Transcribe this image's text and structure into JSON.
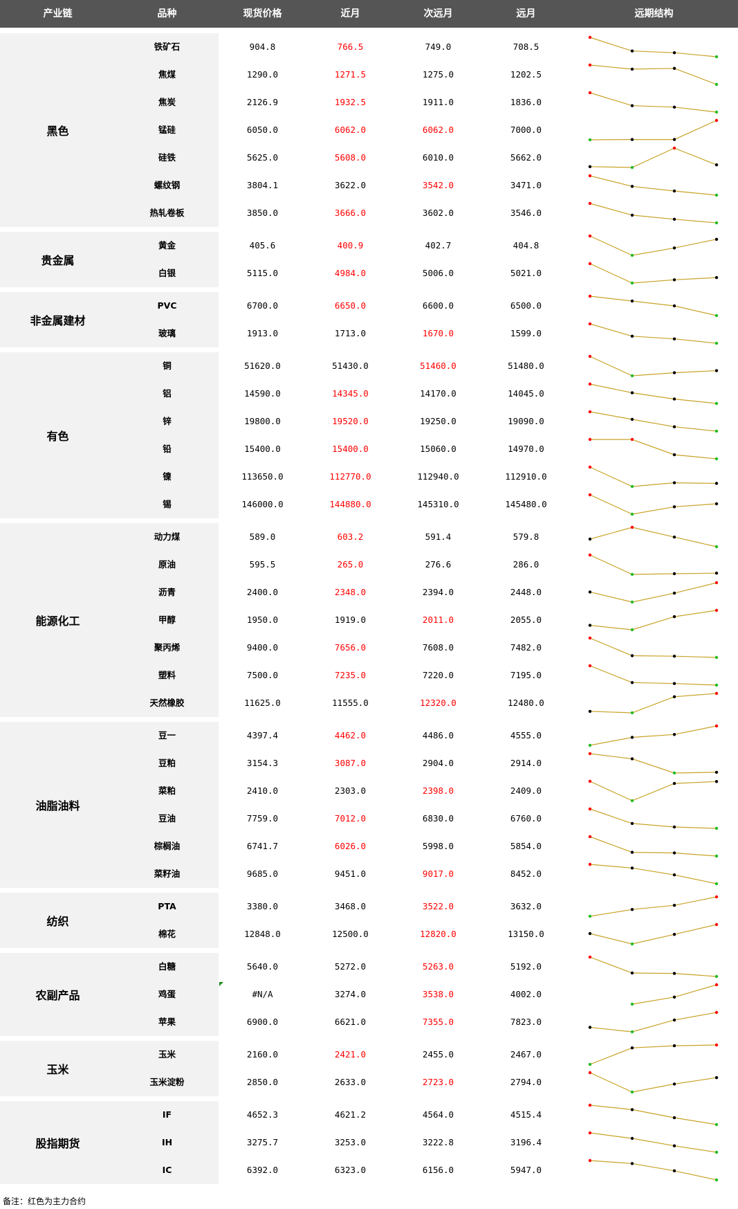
{
  "header": [
    "产业链",
    "品种",
    "现货价格",
    "近月",
    "次远月",
    "远月",
    "远期结构"
  ],
  "footnote": "备注：红色为主力合约",
  "colors": {
    "header_bg": "#555555",
    "main_contract": "#ff0000",
    "line": "#c9a227",
    "point_max": "#ff0000",
    "point_min": "#22bb22",
    "point_mid": "#000000"
  },
  "groups": [
    {
      "name": "黑色",
      "rows": [
        {
          "name": "铁矿石",
          "spot": "904.8",
          "near": "766.5",
          "next": "749.0",
          "far": "708.5",
          "main": "near"
        },
        {
          "name": "焦煤",
          "spot": "1290.0",
          "near": "1271.5",
          "next": "1275.0",
          "far": "1202.5",
          "main": "near"
        },
        {
          "name": "焦炭",
          "spot": "2126.9",
          "near": "1932.5",
          "next": "1911.0",
          "far": "1836.0",
          "main": "near"
        },
        {
          "name": "锰硅",
          "spot": "6050.0",
          "near": "6062.0",
          "next": "6062.0",
          "far": "7000.0",
          "main": "near,next"
        },
        {
          "name": "硅铁",
          "spot": "5625.0",
          "near": "5608.0",
          "next": "6010.0",
          "far": "5662.0",
          "main": "near"
        },
        {
          "name": "螺纹钢",
          "spot": "3804.1",
          "near": "3622.0",
          "next": "3542.0",
          "far": "3471.0",
          "main": "next"
        },
        {
          "name": "热轧卷板",
          "spot": "3850.0",
          "near": "3666.0",
          "next": "3602.0",
          "far": "3546.0",
          "main": "near"
        }
      ]
    },
    {
      "name": "贵金属",
      "rows": [
        {
          "name": "黄金",
          "spot": "405.6",
          "near": "400.9",
          "next": "402.7",
          "far": "404.8",
          "main": "near"
        },
        {
          "name": "白银",
          "spot": "5115.0",
          "near": "4984.0",
          "next": "5006.0",
          "far": "5021.0",
          "main": "near"
        }
      ]
    },
    {
      "name": "非金属建材",
      "rows": [
        {
          "name": "PVC",
          "spot": "6700.0",
          "near": "6650.0",
          "next": "6600.0",
          "far": "6500.0",
          "main": "near"
        },
        {
          "name": "玻璃",
          "spot": "1913.0",
          "near": "1713.0",
          "next": "1670.0",
          "far": "1599.0",
          "main": "next"
        }
      ]
    },
    {
      "name": "有色",
      "rows": [
        {
          "name": "铜",
          "spot": "51620.0",
          "near": "51430.0",
          "next": "51460.0",
          "far": "51480.0",
          "main": "next"
        },
        {
          "name": "铝",
          "spot": "14590.0",
          "near": "14345.0",
          "next": "14170.0",
          "far": "14045.0",
          "main": "near"
        },
        {
          "name": "锌",
          "spot": "19800.0",
          "near": "19520.0",
          "next": "19250.0",
          "far": "19090.0",
          "main": "near"
        },
        {
          "name": "铅",
          "spot": "15400.0",
          "near": "15400.0",
          "next": "15060.0",
          "far": "14970.0",
          "main": "near"
        },
        {
          "name": "镍",
          "spot": "113650.0",
          "near": "112770.0",
          "next": "112940.0",
          "far": "112910.0",
          "main": "near"
        },
        {
          "name": "锡",
          "spot": "146000.0",
          "near": "144880.0",
          "next": "145310.0",
          "far": "145480.0",
          "main": "near"
        }
      ]
    },
    {
      "name": "能源化工",
      "rows": [
        {
          "name": "动力煤",
          "spot": "589.0",
          "near": "603.2",
          "next": "591.4",
          "far": "579.8",
          "main": "near"
        },
        {
          "name": "原油",
          "spot": "595.5",
          "near": "265.0",
          "next": "276.6",
          "far": "286.0",
          "main": "near"
        },
        {
          "name": "沥青",
          "spot": "2400.0",
          "near": "2348.0",
          "next": "2394.0",
          "far": "2448.0",
          "main": "near"
        },
        {
          "name": "甲醇",
          "spot": "1950.0",
          "near": "1919.0",
          "next": "2011.0",
          "far": "2055.0",
          "main": "next"
        },
        {
          "name": "聚丙烯",
          "spot": "9400.0",
          "near": "7656.0",
          "next": "7608.0",
          "far": "7482.0",
          "main": "near"
        },
        {
          "name": "塑料",
          "spot": "7500.0",
          "near": "7235.0",
          "next": "7220.0",
          "far": "7195.0",
          "main": "near"
        },
        {
          "name": "天然橡胶",
          "spot": "11625.0",
          "near": "11555.0",
          "next": "12320.0",
          "far": "12480.0",
          "main": "next"
        }
      ]
    },
    {
      "name": "油脂油料",
      "rows": [
        {
          "name": "豆一",
          "spot": "4397.4",
          "near": "4462.0",
          "next": "4486.0",
          "far": "4555.0",
          "main": "near"
        },
        {
          "name": "豆粕",
          "spot": "3154.3",
          "near": "3087.0",
          "next": "2904.0",
          "far": "2914.0",
          "main": "near"
        },
        {
          "name": "菜粕",
          "spot": "2410.0",
          "near": "2303.0",
          "next": "2398.0",
          "far": "2409.0",
          "main": "next"
        },
        {
          "name": "豆油",
          "spot": "7759.0",
          "near": "7012.0",
          "next": "6830.0",
          "far": "6760.0",
          "main": "near"
        },
        {
          "name": "棕榈油",
          "spot": "6741.7",
          "near": "6026.0",
          "next": "5998.0",
          "far": "5854.0",
          "main": "near"
        },
        {
          "name": "菜籽油",
          "spot": "9685.0",
          "near": "9451.0",
          "next": "9017.0",
          "far": "8452.0",
          "main": "next"
        }
      ]
    },
    {
      "name": "纺织",
      "rows": [
        {
          "name": "PTA",
          "spot": "3380.0",
          "near": "3468.0",
          "next": "3522.0",
          "far": "3632.0",
          "main": "next"
        },
        {
          "name": "棉花",
          "spot": "12848.0",
          "near": "12500.0",
          "next": "12820.0",
          "far": "13150.0",
          "main": "next"
        }
      ]
    },
    {
      "name": "农副产品",
      "rows": [
        {
          "name": "白糖",
          "spot": "5640.0",
          "near": "5272.0",
          "next": "5263.0",
          "far": "5192.0",
          "main": "next"
        },
        {
          "name": "鸡蛋",
          "spot": "#N/A",
          "near": "3274.0",
          "next": "3538.0",
          "far": "4002.0",
          "main": "next"
        },
        {
          "name": "苹果",
          "spot": "6900.0",
          "near": "6621.0",
          "next": "7355.0",
          "far": "7823.0",
          "main": "next"
        }
      ]
    },
    {
      "name": "玉米",
      "rows": [
        {
          "name": "玉米",
          "spot": "2160.0",
          "near": "2421.0",
          "next": "2455.0",
          "far": "2467.0",
          "main": "near"
        },
        {
          "name": "玉米淀粉",
          "spot": "2850.0",
          "near": "2633.0",
          "next": "2723.0",
          "far": "2794.0",
          "main": "next"
        }
      ]
    },
    {
      "name": "股指期货",
      "rows": [
        {
          "name": "IF",
          "spot": "4652.3",
          "near": "4621.2",
          "next": "4564.0",
          "far": "4515.4",
          "main": ""
        },
        {
          "name": "IH",
          "spot": "3275.7",
          "near": "3253.0",
          "next": "3222.8",
          "far": "3196.4",
          "main": ""
        },
        {
          "name": "IC",
          "spot": "6392.0",
          "near": "6323.0",
          "next": "6156.0",
          "far": "5947.0",
          "main": ""
        }
      ]
    }
  ]
}
